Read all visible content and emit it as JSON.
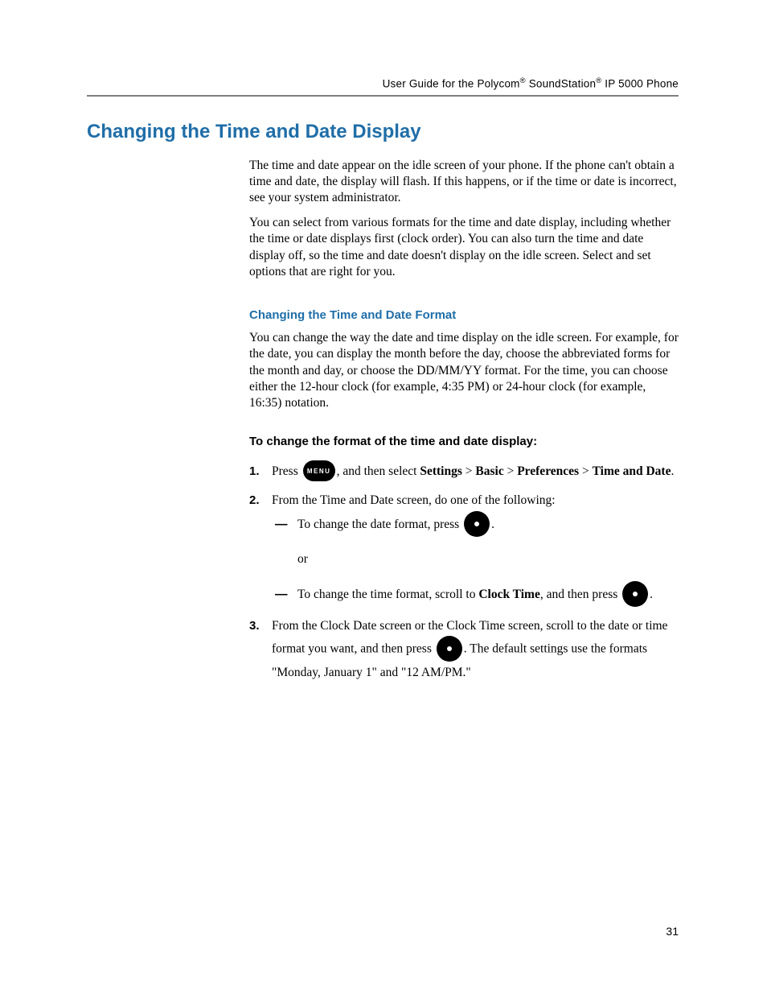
{
  "header": {
    "prefix": "User Guide for the Polycom",
    "reg1": "®",
    "mid": " SoundStation",
    "reg2": "®",
    "suffix": " IP 5000 Phone"
  },
  "colors": {
    "heading_blue": "#1f6ea8",
    "rule_gray": "#808080",
    "text": "#000000",
    "button_bg": "#000000",
    "button_fg": "#ffffff",
    "page_bg": "#ffffff"
  },
  "h1": "Changing the Time and Date Display",
  "intro": {
    "p1": "The time and date appear on the idle screen of your phone. If the phone can't obtain a time and date, the display will flash. If this happens, or if the time or date is incorrect, see your system administrator.",
    "p2": "You can select from various formats for the time and date display, including whether the time or date displays first (clock order). You can also turn the time and date display off, so the time and date doesn't display on the idle screen. Select and set options that are right for you."
  },
  "h2": "Changing the Time and Date Format",
  "format_p": "You can change the way the date and time display on the idle screen. For example, for the date, you can display the month before the day, choose the abbreviated forms for the month and day, or choose the DD/MM/YY format. For the time, you can choose either the 12-hour clock (for example, 4:35 PM) or 24-hour clock (for example, 16:35) notation.",
  "h3": "To change the format of the time and date display:",
  "steps": {
    "s1": {
      "press": "Press ",
      "menu_label": "MENU",
      "after_menu": ", and then select ",
      "nav1": "Settings",
      "gt1": " > ",
      "nav2": "Basic",
      "gt2": " > ",
      "nav3": "Preferences",
      "gt3": " > ",
      "nav4": "Time and Date",
      "period": "."
    },
    "s2": {
      "lead": "From the Time and Date screen, do one of the following:",
      "a_pre": "To change the date format, press ",
      "a_post": ".",
      "or": "or",
      "b_pre": "To change the time format, scroll to ",
      "b_bold": "Clock Time",
      "b_mid": ", and then press ",
      "b_post": "."
    },
    "s3": {
      "pre": "From the Clock Date screen or the Clock Time screen, scroll to the date or time format you want, and then press ",
      "post": ". The default settings use the formats \"Monday, January 1\" and \"12 AM/PM.\""
    }
  },
  "page_number": "31"
}
